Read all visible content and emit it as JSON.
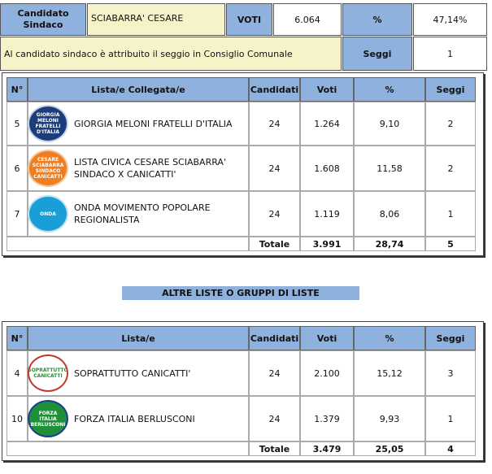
{
  "candidate": {
    "label": "Candidato Sindaco",
    "name": "SCIABARRA' CESARE",
    "votes_label": "VOTI",
    "votes": "6.064",
    "percent_label": "%",
    "percent": "47,14%",
    "seat_note": "Al candidato sindaco è attribuito il seggio in Consiglio Comunale",
    "seats_label": "Seggi",
    "seats": "1"
  },
  "coalition": {
    "headers": [
      "N°",
      "Lista/e Collegata/e",
      "Candidati",
      "Voti",
      "%",
      "Seggi"
    ],
    "rows": [
      {
        "n": "5",
        "logo": "logo-giorgia-meloni",
        "logo_text": "GIORGIA MELONI FRATELLI D'ITALIA",
        "list": "GIORGIA MELONI FRATELLI D'ITALIA",
        "candidates": "24",
        "votes": "1.264",
        "percent": "9,10",
        "seats": "2"
      },
      {
        "n": "6",
        "logo": "logo-cesare-sciabarra",
        "logo_text": "CESARE SCIABARRA SINDACO CANICATTI",
        "list": "LISTA CIVICA CESARE SCIABARRA' SINDACO X CANICATTI'",
        "candidates": "24",
        "votes": "1.608",
        "percent": "11,58",
        "seats": "2"
      },
      {
        "n": "7",
        "logo": "logo-onda",
        "logo_text": "ONDA",
        "list": "ONDA MOVIMENTO POPOLARE REGIONALISTA",
        "candidates": "24",
        "votes": "1.119",
        "percent": "8,06",
        "seats": "1"
      }
    ],
    "total_label": "Totale",
    "total_votes": "3.991",
    "total_percent": "28,74",
    "total_seats": "5"
  },
  "other_section_title": "ALTRE LISTE O GRUPPI DI LISTE",
  "others": {
    "headers": [
      "N°",
      "Lista/e",
      "Candidati",
      "Voti",
      "%",
      "Seggi"
    ],
    "rows": [
      {
        "n": "4",
        "logo": "logo-soprattutto-canicatti",
        "logo_text": "SOPRATTUTTO CANICATTI",
        "list": "SOPRATTUTTO CANICATTI'",
        "candidates": "24",
        "votes": "2.100",
        "percent": "15,12",
        "seats": "3"
      },
      {
        "n": "10",
        "logo": "logo-forza-italia",
        "logo_text": "FORZA ITALIA BERLUSCONI",
        "list": "FORZA ITALIA BERLUSCONI",
        "candidates": "24",
        "votes": "1.379",
        "percent": "9,93",
        "seats": "1"
      }
    ],
    "total_label": "Totale",
    "total_votes": "3.479",
    "total_percent": "25,05",
    "total_seats": "4"
  }
}
